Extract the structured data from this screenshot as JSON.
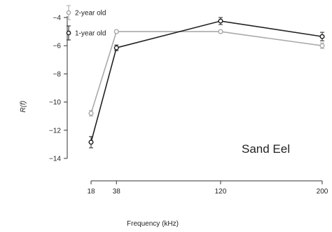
{
  "chart_data": {
    "type": "line",
    "xlabel": "Frequency (kHz)",
    "ylabel": "R(f)",
    "x_ticks": [
      18,
      38,
      120,
      200
    ],
    "y_ticks": [
      -14,
      -12,
      -10,
      -8,
      -6,
      -4
    ],
    "xlim": [
      18,
      200
    ],
    "ylim": [
      -14,
      -3.2
    ],
    "x_tick_labels": [
      "18",
      "38",
      "120",
      "200"
    ],
    "y_tick_labels": [
      "−14",
      "−12",
      "−10",
      "−8",
      "−6",
      "−4"
    ],
    "annotation": "Sand Eel",
    "grid": false,
    "legend_position": "top-left",
    "series": [
      {
        "name": "2-year old",
        "color": "#aaaaaa",
        "x": [
          18,
          38,
          120,
          200
        ],
        "y": [
          -10.8,
          -5.0,
          -5.0,
          -6.0
        ],
        "err": [
          0.2,
          0.1,
          0.1,
          0.2
        ]
      },
      {
        "name": "1-year old",
        "color": "#222222",
        "x": [
          18,
          38,
          120,
          200
        ],
        "y": [
          -12.85,
          -6.15,
          -4.25,
          -5.35
        ],
        "err": [
          0.4,
          0.2,
          0.25,
          0.3
        ]
      }
    ]
  }
}
